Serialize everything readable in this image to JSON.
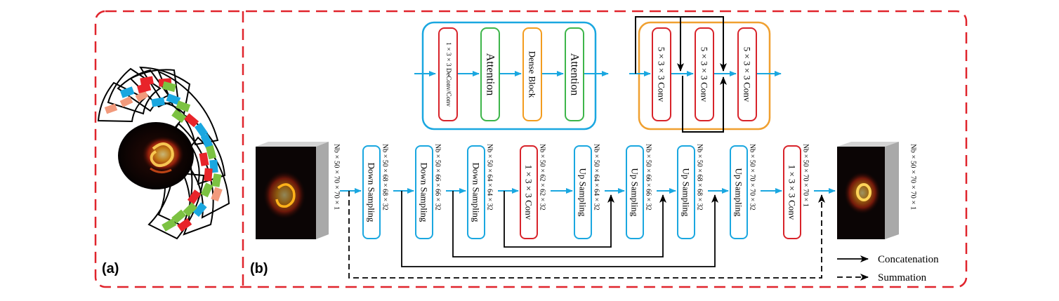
{
  "panel_labels": {
    "a": "(a)",
    "b": "(b)"
  },
  "colors": {
    "dashed_border": "#e0242c",
    "arrow_blue": "#1aa7e0",
    "box_blue": "#1aa7e0",
    "box_red": "#d8232a",
    "box_green": "#3db54a",
    "box_orange": "#f39c1e",
    "block_orange": "#f0a030",
    "stripe_red": "#e8242a",
    "stripe_blue": "#1aa7e0",
    "stripe_green": "#7cc242",
    "stripe_salmon": "#f29a7c"
  },
  "top_left_module": {
    "items": [
      "1 × 3 × 3 DeConv/Conv",
      "Attention",
      "Dense Block",
      "Attention"
    ]
  },
  "top_right_module": {
    "items": [
      "5 × 3 × 3 Conv",
      "5 × 3 × 3 Conv",
      "5 × 3 × 3 Conv"
    ]
  },
  "pipeline": {
    "input_dim": "Nb × 50 × 70 × 70 × 1",
    "output_dim": "Nb × 50 × 70 × 70 × 1",
    "blocks": [
      {
        "label": "Down Sampling",
        "out_dim": "Nb × 50 × 68 × 68 × 32"
      },
      {
        "label": "Down Sampling",
        "out_dim": "Nb × 50 × 66 × 66 × 32"
      },
      {
        "label": "Down Sampling",
        "out_dim": "Nb × 50 × 64 × 64 × 32"
      },
      {
        "label": "1 × 3 × 3 Conv",
        "out_dim": "Nb × 50 × 62 × 62 × 32"
      },
      {
        "label": "Up Sampling",
        "out_dim": "Nb × 50 × 64 × 64 × 32"
      },
      {
        "label": "Up Sampling",
        "out_dim": "Nb × 50 × 66 × 66 × 32"
      },
      {
        "label": "Up Sampling",
        "out_dim": "Nb × 50 × 68 × 68 × 32"
      },
      {
        "label": "Up Sampling",
        "out_dim": "Nb × 50 × 70 × 70 × 32"
      },
      {
        "label": "1 × 3 × 3 Conv",
        "out_dim": "Nb × 50 × 70 × 70 × 1"
      }
    ]
  },
  "legend": {
    "concatenation": "Concatenation",
    "summation": "Summation"
  }
}
